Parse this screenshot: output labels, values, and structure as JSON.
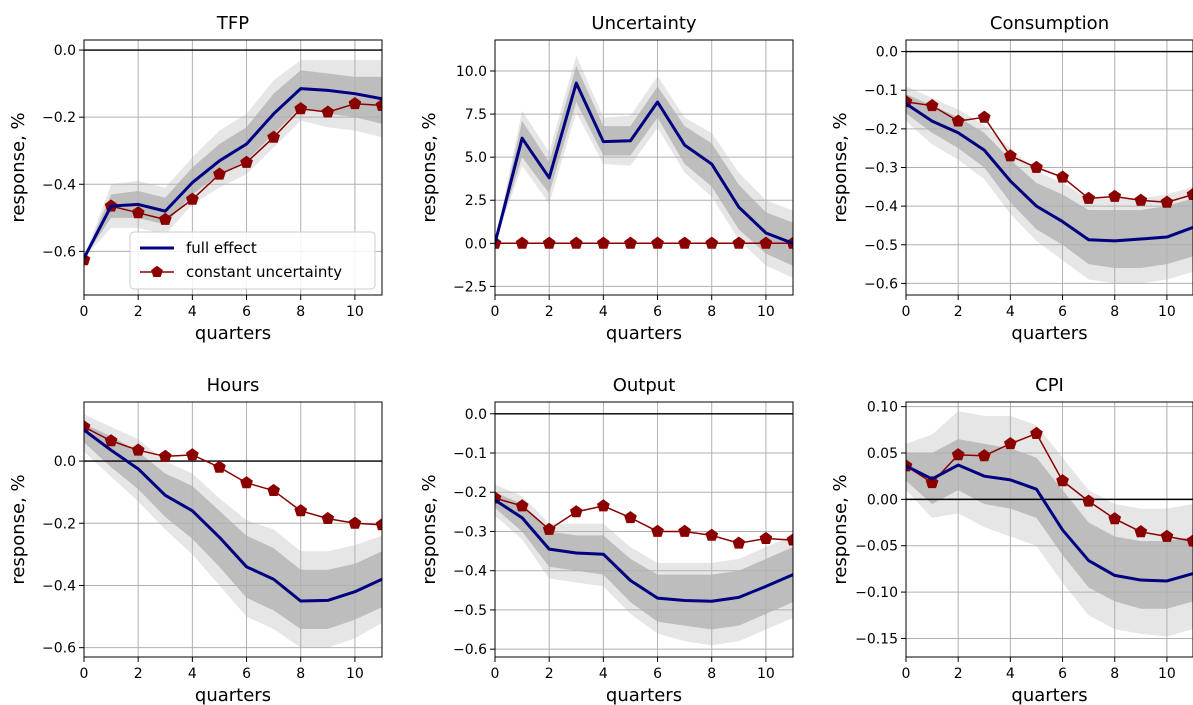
{
  "legend": {
    "full_effect": "full effect",
    "constant_uncertainty": "constant uncertainty"
  },
  "colors": {
    "full_effect": "#000080",
    "constant_uncertainty": "#8b0000",
    "band_outer": "#e6e6e6",
    "band_inner": "#bdbdbd",
    "grid": "#b0b0b0",
    "zero_line": "#000000"
  },
  "chart_data": [
    {
      "type": "line",
      "title": "TFP",
      "xlabel": "quarters",
      "ylabel": "response, %",
      "xlim": [
        0,
        11
      ],
      "ylim": [
        -0.73,
        0.03
      ],
      "xticks": [
        0,
        2,
        4,
        6,
        8,
        10
      ],
      "xtick_labels": [
        "0",
        "2",
        "4",
        "6",
        "8",
        "10"
      ],
      "yticks": [
        -0.6,
        -0.4,
        -0.2,
        0.0
      ],
      "ytick_labels": [
        "−0.6",
        "−0.4",
        "−0.2",
        "0.0"
      ],
      "zero_line": true,
      "grid": true,
      "legend_placement": "bottom-right",
      "x": [
        0,
        1,
        2,
        3,
        4,
        5,
        6,
        7,
        8,
        9,
        10,
        11
      ],
      "full_effect": [
        -0.62,
        -0.465,
        -0.46,
        -0.48,
        -0.395,
        -0.33,
        -0.28,
        -0.19,
        -0.115,
        -0.12,
        -0.13,
        -0.145
      ],
      "constant_uncertainty": [
        -0.625,
        -0.465,
        -0.485,
        -0.505,
        -0.445,
        -0.37,
        -0.335,
        -0.26,
        -0.175,
        -0.185,
        -0.16,
        -0.165
      ],
      "band68": [
        [
          -0.62,
          -0.62
        ],
        [
          -0.5,
          -0.43
        ],
        [
          -0.5,
          -0.42
        ],
        [
          -0.52,
          -0.44
        ],
        [
          -0.43,
          -0.35
        ],
        [
          -0.37,
          -0.28
        ],
        [
          -0.33,
          -0.23
        ],
        [
          -0.25,
          -0.13
        ],
        [
          -0.17,
          -0.06
        ],
        [
          -0.19,
          -0.07
        ],
        [
          -0.2,
          -0.08
        ],
        [
          -0.22,
          -0.08
        ]
      ],
      "band90": [
        [
          -0.62,
          -0.62
        ],
        [
          -0.53,
          -0.4
        ],
        [
          -0.53,
          -0.39
        ],
        [
          -0.55,
          -0.41
        ],
        [
          -0.46,
          -0.32
        ],
        [
          -0.41,
          -0.24
        ],
        [
          -0.37,
          -0.19
        ],
        [
          -0.29,
          -0.09
        ],
        [
          -0.21,
          -0.03
        ],
        [
          -0.23,
          -0.03
        ],
        [
          -0.24,
          -0.03
        ],
        [
          -0.26,
          -0.03
        ]
      ]
    },
    {
      "type": "line",
      "title": "Uncertainty",
      "xlabel": "quarters",
      "ylabel": "response, %",
      "xlim": [
        0,
        11
      ],
      "ylim": [
        -3.0,
        11.8
      ],
      "xticks": [
        0,
        2,
        4,
        6,
        8,
        10
      ],
      "xtick_labels": [
        "0",
        "2",
        "4",
        "6",
        "8",
        "10"
      ],
      "yticks": [
        -2.5,
        0.0,
        2.5,
        5.0,
        7.5,
        10.0
      ],
      "ytick_labels": [
        "−2.5",
        "0.0",
        "2.5",
        "5.0",
        "7.5",
        "10.0"
      ],
      "zero_line": false,
      "grid": true,
      "x": [
        0,
        1,
        2,
        3,
        4,
        5,
        6,
        7,
        8,
        9,
        10,
        11
      ],
      "full_effect": [
        0,
        6.1,
        3.8,
        9.3,
        5.9,
        5.95,
        8.2,
        5.7,
        4.6,
        2.1,
        0.6,
        0.0
      ],
      "constant_uncertainty": [
        0,
        0,
        0,
        0,
        0,
        0,
        0,
        0,
        0,
        0,
        0,
        0
      ],
      "band68": [
        [
          0,
          0
        ],
        [
          5.0,
          7.1
        ],
        [
          2.9,
          4.7
        ],
        [
          8.2,
          10.3
        ],
        [
          5.1,
          6.8
        ],
        [
          5.1,
          6.8
        ],
        [
          7.3,
          9.1
        ],
        [
          4.6,
          6.8
        ],
        [
          3.3,
          5.8
        ],
        [
          0.8,
          3.4
        ],
        [
          -0.6,
          1.8
        ],
        [
          -1.3,
          1.2
        ]
      ],
      "band90": [
        [
          0,
          0
        ],
        [
          4.5,
          7.7
        ],
        [
          2.3,
          5.3
        ],
        [
          7.6,
          10.9
        ],
        [
          4.6,
          7.3
        ],
        [
          4.5,
          7.4
        ],
        [
          6.7,
          9.7
        ],
        [
          4.1,
          7.3
        ],
        [
          2.7,
          6.4
        ],
        [
          0.2,
          4.1
        ],
        [
          -1.3,
          2.5
        ],
        [
          -2.0,
          1.9
        ]
      ]
    },
    {
      "type": "line",
      "title": "Consumption",
      "xlabel": "quarters",
      "ylabel": "response, %",
      "xlim": [
        0,
        11
      ],
      "ylim": [
        -0.63,
        0.03
      ],
      "xticks": [
        0,
        2,
        4,
        6,
        8,
        10
      ],
      "xtick_labels": [
        "0",
        "2",
        "4",
        "6",
        "8",
        "10"
      ],
      "yticks": [
        -0.6,
        -0.5,
        -0.4,
        -0.3,
        -0.2,
        -0.1,
        0.0
      ],
      "ytick_labels": [
        "−0.6",
        "−0.5",
        "−0.4",
        "−0.3",
        "−0.2",
        "−0.1",
        "0.0"
      ],
      "zero_line": true,
      "grid": true,
      "x": [
        0,
        1,
        2,
        3,
        4,
        5,
        6,
        7,
        8,
        9,
        10,
        11
      ],
      "full_effect": [
        -0.135,
        -0.18,
        -0.21,
        -0.255,
        -0.335,
        -0.4,
        -0.44,
        -0.487,
        -0.49,
        -0.485,
        -0.48,
        -0.455
      ],
      "constant_uncertainty": [
        -0.13,
        -0.14,
        -0.18,
        -0.17,
        -0.27,
        -0.3,
        -0.325,
        -0.38,
        -0.375,
        -0.385,
        -0.39,
        -0.37
      ],
      "band68": [
        [
          -0.11,
          -0.16
        ],
        [
          -0.14,
          -0.21
        ],
        [
          -0.17,
          -0.25
        ],
        [
          -0.21,
          -0.3
        ],
        [
          -0.28,
          -0.39
        ],
        [
          -0.34,
          -0.46
        ],
        [
          -0.37,
          -0.5
        ],
        [
          -0.41,
          -0.55
        ],
        [
          -0.41,
          -0.56
        ],
        [
          -0.41,
          -0.56
        ],
        [
          -0.4,
          -0.55
        ],
        [
          -0.38,
          -0.53
        ]
      ],
      "band90": [
        [
          -0.09,
          -0.18
        ],
        [
          -0.12,
          -0.24
        ],
        [
          -0.15,
          -0.28
        ],
        [
          -0.19,
          -0.33
        ],
        [
          -0.25,
          -0.42
        ],
        [
          -0.31,
          -0.49
        ],
        [
          -0.34,
          -0.54
        ],
        [
          -0.38,
          -0.59
        ],
        [
          -0.38,
          -0.6
        ],
        [
          -0.38,
          -0.6
        ],
        [
          -0.37,
          -0.59
        ],
        [
          -0.35,
          -0.57
        ]
      ]
    },
    {
      "type": "line",
      "title": "Hours",
      "xlabel": "quarters",
      "ylabel": "response, %",
      "xlim": [
        0,
        11
      ],
      "ylim": [
        -0.63,
        0.19
      ],
      "xticks": [
        0,
        2,
        4,
        6,
        8,
        10
      ],
      "xtick_labels": [
        "0",
        "2",
        "4",
        "6",
        "8",
        "10"
      ],
      "yticks": [
        -0.6,
        -0.4,
        -0.2,
        0.0
      ],
      "ytick_labels": [
        "−0.6",
        "−0.4",
        "−0.2",
        "0.0"
      ],
      "zero_line": true,
      "grid": true,
      "x": [
        0,
        1,
        2,
        3,
        4,
        5,
        6,
        7,
        8,
        9,
        10,
        11
      ],
      "full_effect": [
        0.1,
        0.035,
        -0.025,
        -0.11,
        -0.16,
        -0.245,
        -0.34,
        -0.38,
        -0.45,
        -0.448,
        -0.42,
        -0.38
      ],
      "constant_uncertainty": [
        0.11,
        0.065,
        0.035,
        0.015,
        0.02,
        -0.02,
        -0.07,
        -0.095,
        -0.16,
        -0.185,
        -0.2,
        -0.205
      ],
      "band68": [
        [
          0.12,
          0.06
        ],
        [
          0.08,
          -0.02
        ],
        [
          0.03,
          -0.09
        ],
        [
          -0.04,
          -0.18
        ],
        [
          -0.08,
          -0.25
        ],
        [
          -0.16,
          -0.34
        ],
        [
          -0.24,
          -0.44
        ],
        [
          -0.28,
          -0.48
        ],
        [
          -0.35,
          -0.54
        ],
        [
          -0.35,
          -0.54
        ],
        [
          -0.33,
          -0.51
        ],
        [
          -0.29,
          -0.47
        ]
      ],
      "band90": [
        [
          0.15,
          0.03
        ],
        [
          0.11,
          -0.05
        ],
        [
          0.07,
          -0.13
        ],
        [
          0.0,
          -0.22
        ],
        [
          -0.04,
          -0.3
        ],
        [
          -0.12,
          -0.4
        ],
        [
          -0.19,
          -0.5
        ],
        [
          -0.22,
          -0.54
        ],
        [
          -0.29,
          -0.6
        ],
        [
          -0.29,
          -0.6
        ],
        [
          -0.27,
          -0.57
        ],
        [
          -0.24,
          -0.52
        ]
      ]
    },
    {
      "type": "line",
      "title": "Output",
      "xlabel": "quarters",
      "ylabel": "response, %",
      "xlim": [
        0,
        11
      ],
      "ylim": [
        -0.62,
        0.03
      ],
      "xticks": [
        0,
        2,
        4,
        6,
        8,
        10
      ],
      "xtick_labels": [
        "0",
        "2",
        "4",
        "6",
        "8",
        "10"
      ],
      "yticks": [
        -0.6,
        -0.5,
        -0.4,
        -0.3,
        -0.2,
        -0.1,
        0.0
      ],
      "ytick_labels": [
        "−0.6",
        "−0.5",
        "−0.4",
        "−0.3",
        "−0.2",
        "−0.1",
        "0.0"
      ],
      "zero_line": true,
      "grid": true,
      "x": [
        0,
        1,
        2,
        3,
        4,
        5,
        6,
        7,
        8,
        9,
        10,
        11
      ],
      "full_effect": [
        -0.22,
        -0.265,
        -0.345,
        -0.355,
        -0.358,
        -0.425,
        -0.47,
        -0.476,
        -0.478,
        -0.468,
        -0.44,
        -0.41
      ],
      "constant_uncertainty": [
        -0.215,
        -0.235,
        -0.295,
        -0.25,
        -0.235,
        -0.265,
        -0.3,
        -0.3,
        -0.31,
        -0.33,
        -0.318,
        -0.322
      ],
      "band68": [
        [
          -0.2,
          -0.24
        ],
        [
          -0.23,
          -0.3
        ],
        [
          -0.3,
          -0.39
        ],
        [
          -0.31,
          -0.4
        ],
        [
          -0.31,
          -0.41
        ],
        [
          -0.37,
          -0.48
        ],
        [
          -0.41,
          -0.53
        ],
        [
          -0.41,
          -0.54
        ],
        [
          -0.41,
          -0.55
        ],
        [
          -0.4,
          -0.54
        ],
        [
          -0.37,
          -0.51
        ],
        [
          -0.34,
          -0.48
        ]
      ],
      "band90": [
        [
          -0.18,
          -0.26
        ],
        [
          -0.21,
          -0.32
        ],
        [
          -0.28,
          -0.42
        ],
        [
          -0.28,
          -0.43
        ],
        [
          -0.28,
          -0.44
        ],
        [
          -0.34,
          -0.51
        ],
        [
          -0.38,
          -0.56
        ],
        [
          -0.38,
          -0.58
        ],
        [
          -0.38,
          -0.59
        ],
        [
          -0.37,
          -0.58
        ],
        [
          -0.34,
          -0.55
        ],
        [
          -0.31,
          -0.52
        ]
      ]
    },
    {
      "type": "line",
      "title": "CPI",
      "xlabel": "quarters",
      "ylabel": "response, %",
      "xlim": [
        0,
        11
      ],
      "ylim": [
        -0.17,
        0.105
      ],
      "xticks": [
        0,
        2,
        4,
        6,
        8,
        10
      ],
      "xtick_labels": [
        "0",
        "2",
        "4",
        "6",
        "8",
        "10"
      ],
      "yticks": [
        -0.15,
        -0.1,
        -0.05,
        0.0,
        0.05,
        0.1
      ],
      "ytick_labels": [
        "−0.15",
        "−0.10",
        "−0.05",
        "0.00",
        "0.05",
        "0.10"
      ],
      "zero_line": true,
      "grid": true,
      "x": [
        0,
        1,
        2,
        3,
        4,
        5,
        6,
        7,
        8,
        9,
        10,
        11
      ],
      "full_effect": [
        0.036,
        0.022,
        0.037,
        0.025,
        0.021,
        0.011,
        -0.033,
        -0.066,
        -0.082,
        -0.087,
        -0.088,
        -0.08
      ],
      "constant_uncertainty": [
        0.036,
        0.018,
        0.048,
        0.047,
        0.06,
        0.071,
        0.02,
        -0.002,
        -0.021,
        -0.035,
        -0.04,
        -0.045
      ],
      "band68": [
        [
          0.05,
          0.02
        ],
        [
          0.05,
          -0.005
        ],
        [
          0.065,
          0.01
        ],
        [
          0.06,
          -0.005
        ],
        [
          0.055,
          -0.01
        ],
        [
          0.045,
          -0.02
        ],
        [
          0.01,
          -0.06
        ],
        [
          -0.025,
          -0.095
        ],
        [
          -0.04,
          -0.11
        ],
        [
          -0.045,
          -0.118
        ],
        [
          -0.045,
          -0.118
        ],
        [
          -0.04,
          -0.11
        ]
      ],
      "band90": [
        [
          0.06,
          0.01
        ],
        [
          0.07,
          -0.02
        ],
        [
          0.095,
          -0.015
        ],
        [
          0.09,
          -0.03
        ],
        [
          0.09,
          -0.04
        ],
        [
          0.08,
          -0.05
        ],
        [
          0.045,
          -0.09
        ],
        [
          0.01,
          -0.125
        ],
        [
          -0.005,
          -0.14
        ],
        [
          -0.01,
          -0.145
        ],
        [
          -0.01,
          -0.148
        ],
        [
          -0.005,
          -0.14
        ]
      ]
    }
  ]
}
